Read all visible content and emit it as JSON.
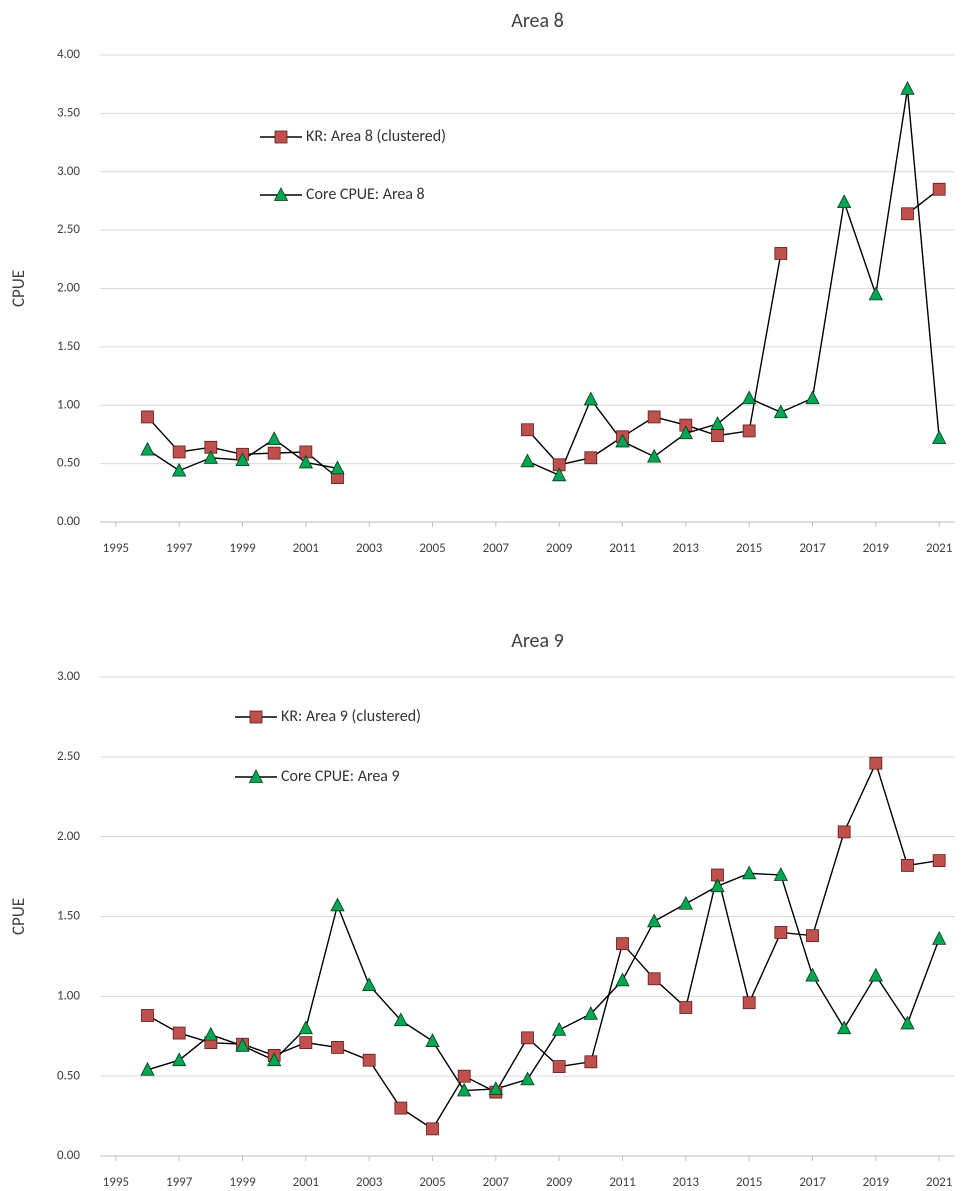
{
  "chart_data": [
    {
      "type": "line",
      "title": "Area 8",
      "y_label": "CPUE",
      "x": [
        1996,
        1997,
        1998,
        1999,
        2000,
        2001,
        2002,
        2003,
        2004,
        2005,
        2006,
        2007,
        2008,
        2009,
        2010,
        2011,
        2012,
        2013,
        2014,
        2015,
        2016,
        2017,
        2018,
        2019,
        2020,
        2021
      ],
      "series": [
        {
          "name": "KR: Area 8 (clustered)",
          "color": "#c0504d",
          "marker": "square",
          "values": [
            0.9,
            0.6,
            0.64,
            0.58,
            0.59,
            0.6,
            0.38,
            null,
            null,
            null,
            null,
            null,
            0.79,
            0.49,
            0.55,
            0.73,
            0.9,
            0.83,
            0.74,
            0.78,
            2.3,
            null,
            null,
            null,
            2.64,
            2.85
          ]
        },
        {
          "name": "Core CPUE: Area 8",
          "color": "#00a651",
          "marker": "triangle",
          "values": [
            0.62,
            0.44,
            0.55,
            0.53,
            0.71,
            0.51,
            0.46,
            null,
            null,
            null,
            null,
            null,
            0.52,
            0.4,
            1.05,
            0.69,
            0.56,
            0.76,
            0.84,
            1.06,
            0.94,
            1.06,
            2.74,
            1.95,
            3.71,
            0.72
          ]
        }
      ],
      "xlim": [
        1994.5,
        2021.5
      ],
      "xticks": [
        1995,
        1997,
        1999,
        2001,
        2003,
        2005,
        2007,
        2009,
        2011,
        2013,
        2015,
        2017,
        2019,
        2021
      ],
      "ylim": [
        0,
        4
      ],
      "yticks": [
        {
          "value": 0,
          "label": "0.00"
        },
        {
          "value": 0.5,
          "label": "0.50"
        },
        {
          "value": 1,
          "label": "1.00"
        },
        {
          "value": 1.5,
          "label": "1.50"
        },
        {
          "value": 2,
          "label": "2.00"
        },
        {
          "value": 2.5,
          "label": "2.50"
        },
        {
          "value": 3,
          "label": "3.00"
        },
        {
          "value": 3.5,
          "label": "3.50"
        },
        {
          "value": 4,
          "label": "4.00"
        }
      ],
      "grid": true,
      "legend": "upper-left"
    },
    {
      "type": "line",
      "title": "Area 9",
      "y_label": "CPUE",
      "x": [
        1996,
        1997,
        1998,
        1999,
        2000,
        2001,
        2002,
        2003,
        2004,
        2005,
        2006,
        2007,
        2008,
        2009,
        2010,
        2011,
        2012,
        2013,
        2014,
        2015,
        2016,
        2017,
        2018,
        2019,
        2020,
        2021
      ],
      "series": [
        {
          "name": "KR: Area 9 (clustered)",
          "color": "#c0504d",
          "marker": "square",
          "values": [
            0.88,
            0.77,
            0.71,
            0.7,
            0.63,
            0.71,
            0.68,
            0.6,
            0.3,
            0.17,
            0.5,
            0.4,
            0.74,
            0.56,
            0.59,
            1.33,
            1.11,
            0.93,
            1.76,
            0.96,
            1.4,
            1.38,
            2.03,
            2.46,
            1.82,
            1.85
          ]
        },
        {
          "name": "Core CPUE: Area 9",
          "color": "#00a651",
          "marker": "triangle",
          "values": [
            0.54,
            0.6,
            0.76,
            0.69,
            0.6,
            0.8,
            1.57,
            1.07,
            0.85,
            0.72,
            0.41,
            0.42,
            0.48,
            0.79,
            0.89,
            1.1,
            1.47,
            1.58,
            1.69,
            1.77,
            1.76,
            1.13,
            0.8,
            1.13,
            0.83,
            1.36
          ]
        }
      ],
      "xlim": [
        1994.5,
        2021.5
      ],
      "xticks": [
        1995,
        1997,
        1999,
        2001,
        2003,
        2005,
        2007,
        2009,
        2011,
        2013,
        2015,
        2017,
        2019,
        2021
      ],
      "ylim": [
        0,
        3
      ],
      "yticks": [
        {
          "value": 0,
          "label": "0.00"
        },
        {
          "value": 0.5,
          "label": "0.50"
        },
        {
          "value": 1,
          "label": "1.00"
        },
        {
          "value": 1.5,
          "label": "1.50"
        },
        {
          "value": 2,
          "label": "2.00"
        },
        {
          "value": 2.5,
          "label": "2.50"
        },
        {
          "value": 3,
          "label": "3.00"
        }
      ],
      "grid": true,
      "legend": "upper-left"
    }
  ]
}
